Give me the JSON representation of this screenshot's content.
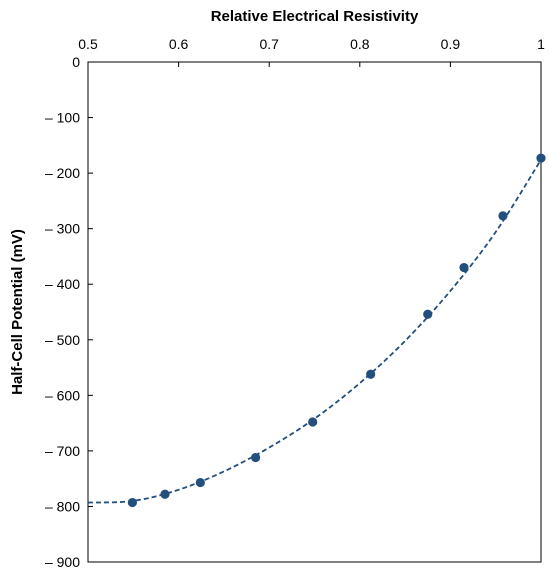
{
  "chart_data": {
    "type": "scatter",
    "title": "",
    "xlabel": "Relative Electrical Resistivity",
    "ylabel": "Half-Cell Potential (mV)",
    "xlim": [
      0.5,
      1.0
    ],
    "ylim": [
      -900,
      0
    ],
    "x_axis_position": "top",
    "grid": false,
    "legend": "none",
    "x_ticks": [
      0.5,
      0.6,
      0.7,
      0.8,
      0.9,
      1.0
    ],
    "x_tick_labels": [
      "0.5",
      "0.6",
      "0.7",
      "0.8",
      "0.9",
      "1"
    ],
    "y_ticks": [
      0,
      -100,
      -200,
      -300,
      -400,
      -500,
      -600,
      -700,
      -800,
      -900
    ],
    "y_tick_labels": [
      "0",
      "– 100",
      "– 200",
      "– 300",
      "– 400",
      "– 500",
      "– 600",
      "– 700",
      "– 800",
      "– 900"
    ],
    "series": [
      {
        "x": [
          0.549,
          0.585,
          0.624,
          0.685,
          0.748,
          0.812,
          0.875,
          0.915,
          0.958,
          1.0
        ],
        "y": [
          -793,
          -778,
          -757,
          -712,
          -648,
          -562,
          -454,
          -370,
          -277,
          -173
        ],
        "marker": "circle",
        "color": "#234f7d"
      }
    ],
    "trendline": {
      "style": "dashed",
      "color": "#234f7d",
      "x_range": [
        0.5,
        1.0
      ],
      "points": [
        [
          0.5,
          -793
        ],
        [
          0.55,
          -790
        ],
        [
          0.6,
          -770
        ],
        [
          0.65,
          -737
        ],
        [
          0.7,
          -694
        ],
        [
          0.75,
          -642
        ],
        [
          0.8,
          -578
        ],
        [
          0.85,
          -502
        ],
        [
          0.9,
          -412
        ],
        [
          0.95,
          -306
        ],
        [
          1.0,
          -176
        ]
      ]
    }
  }
}
